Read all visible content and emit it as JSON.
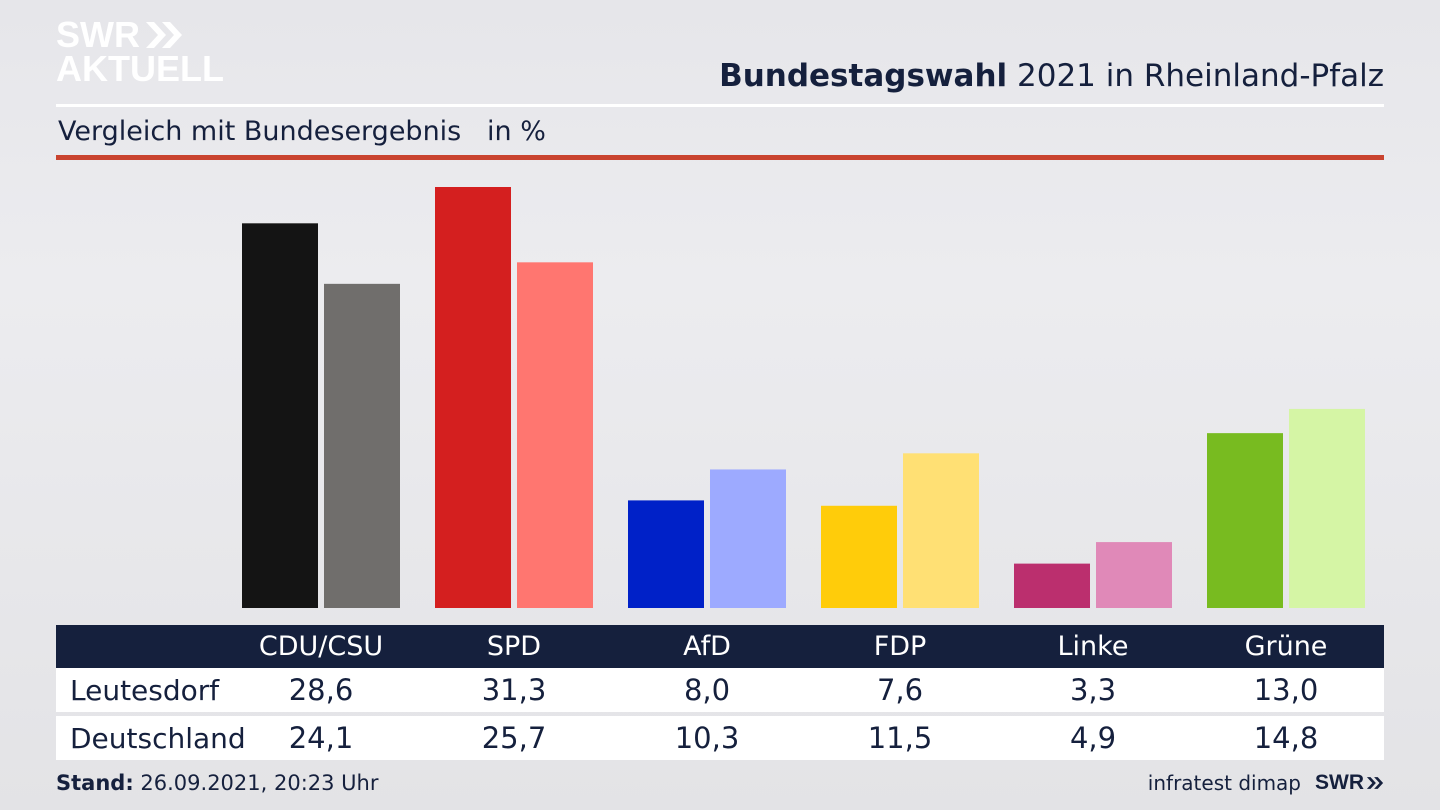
{
  "logo": {
    "line1": "SWR",
    "line2": "AKTUELL"
  },
  "header": {
    "title_bold": "Bundestagswahl",
    "title_rest": " 2021 in Rheinland-Pfalz"
  },
  "subtitle": "Vergleich mit Bundesergebnis   in %",
  "chart_data": {
    "type": "bar",
    "title": "Bundestagswahl 2021 in Rheinland-Pfalz",
    "subtitle": "Vergleich mit Bundesergebnis   in %",
    "categories": [
      "CDU/CSU",
      "SPD",
      "AfD",
      "FDP",
      "Linke",
      "Grüne"
    ],
    "series": [
      {
        "name": "Leutesdorf",
        "values": [
          28.6,
          31.3,
          8.0,
          7.6,
          3.3,
          13.0
        ],
        "colors": [
          "#141414",
          "#d41f1f",
          "#0021c8",
          "#ffcc0a",
          "#bb2f6e",
          "#78bb20"
        ]
      },
      {
        "name": "Deutschland",
        "values": [
          24.1,
          25.7,
          10.3,
          11.5,
          4.9,
          14.8
        ],
        "colors": [
          "#706e6c",
          "#ff7670",
          "#9daaff",
          "#ffe074",
          "#e089b8",
          "#d5f5a5"
        ]
      }
    ],
    "ylim": [
      0,
      31.3
    ],
    "grid": false,
    "legend": "none"
  },
  "table": {
    "headers": [
      "CDU/CSU",
      "SPD",
      "AfD",
      "FDP",
      "Linke",
      "Grüne"
    ],
    "rows": [
      {
        "label": "Leutesdorf",
        "values": [
          "28,6",
          "31,3",
          "8,0",
          "7,6",
          "3,3",
          "13,0"
        ]
      },
      {
        "label": "Deutschland",
        "values": [
          "24,1",
          "25,7",
          "10,3",
          "11,5",
          "4,9",
          "14,8"
        ]
      }
    ]
  },
  "footer": {
    "stand_label": "Stand:",
    "stand_value": " 26.09.2021, 20:23 Uhr",
    "source": "infratest dimap",
    "brand": "SWR"
  }
}
